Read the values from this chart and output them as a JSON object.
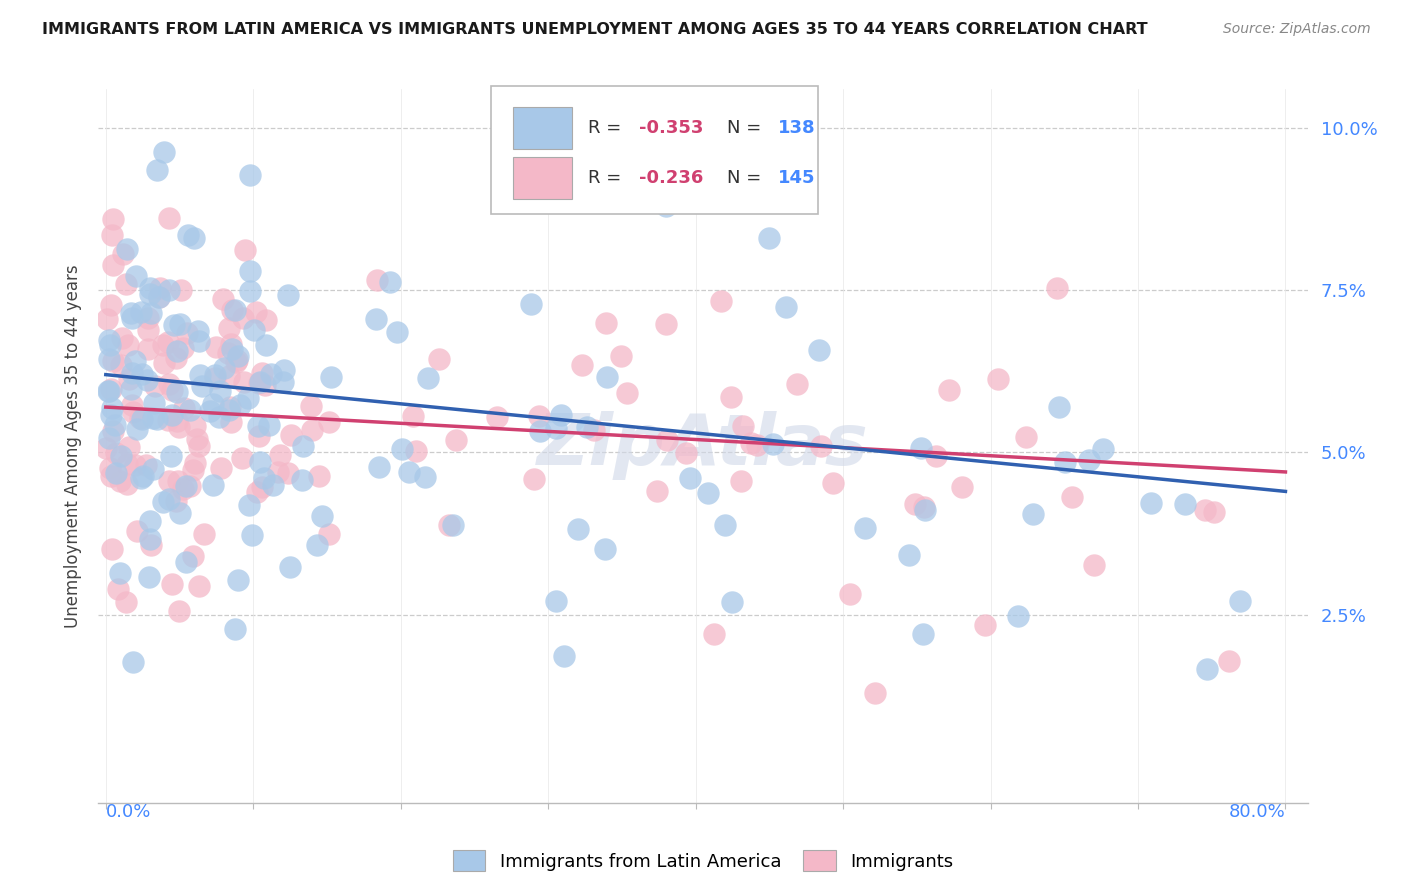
{
  "title": "IMMIGRANTS FROM LATIN AMERICA VS IMMIGRANTS UNEMPLOYMENT AMONG AGES 35 TO 44 YEARS CORRELATION CHART",
  "source": "Source: ZipAtlas.com",
  "ylabel": "Unemployment Among Ages 35 to 44 years",
  "xmin": 0.0,
  "xmax": 0.8,
  "ymin": 0.0,
  "ymax": 0.1,
  "ytick_vals": [
    0.025,
    0.05,
    0.075,
    0.1
  ],
  "ytick_labels": [
    "2.5%",
    "5.0%",
    "7.5%",
    "10.0%"
  ],
  "blue_R": "-0.353",
  "blue_N": "138",
  "pink_R": "-0.236",
  "pink_N": "145",
  "blue_color": "#a8c8e8",
  "pink_color": "#f4b8c8",
  "blue_line_color": "#3060b0",
  "pink_line_color": "#d04070",
  "axis_label_color": "#4488ff",
  "watermark": "ZipAtlas",
  "background_color": "#ffffff",
  "grid_color": "#cccccc",
  "blue_line_start_y": 0.062,
  "blue_line_end_y": 0.044,
  "pink_line_start_y": 0.057,
  "pink_line_end_y": 0.047
}
